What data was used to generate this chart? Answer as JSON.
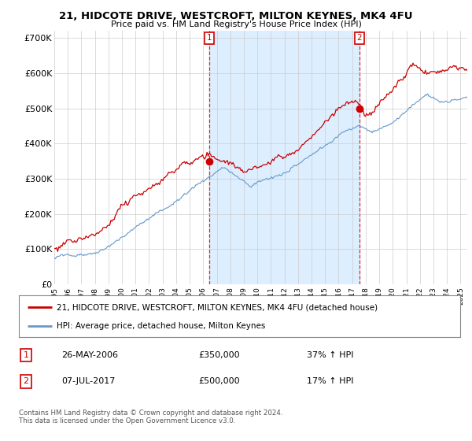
{
  "title_line1": "21, HIDCOTE DRIVE, WESTCROFT, MILTON KEYNES, MK4 4FU",
  "title_line2": "Price paid vs. HM Land Registry's House Price Index (HPI)",
  "ylabel_ticks": [
    "£0",
    "£100K",
    "£200K",
    "£300K",
    "£400K",
    "£500K",
    "£600K",
    "£700K"
  ],
  "ytick_values": [
    0,
    100000,
    200000,
    300000,
    400000,
    500000,
    600000,
    700000
  ],
  "ylim": [
    0,
    720000
  ],
  "xlim_start": 1995.0,
  "xlim_end": 2025.5,
  "purchase1_x": 2006.45,
  "purchase1_y": 350000,
  "purchase1_label": "1",
  "purchase2_x": 2017.52,
  "purchase2_y": 500000,
  "purchase2_label": "2",
  "line1_color": "#cc0000",
  "line2_color": "#6699cc",
  "shade_color": "#ddeeff",
  "background_color": "#ffffff",
  "grid_color": "#cccccc",
  "legend_line1": "21, HIDCOTE DRIVE, WESTCROFT, MILTON KEYNES, MK4 4FU (detached house)",
  "legend_line2": "HPI: Average price, detached house, Milton Keynes",
  "annotation1_date": "26-MAY-2006",
  "annotation1_price": "£350,000",
  "annotation1_hpi": "37% ↑ HPI",
  "annotation2_date": "07-JUL-2017",
  "annotation2_price": "£500,000",
  "annotation2_hpi": "17% ↑ HPI",
  "footer": "Contains HM Land Registry data © Crown copyright and database right 2024.\nThis data is licensed under the Open Government Licence v3.0."
}
